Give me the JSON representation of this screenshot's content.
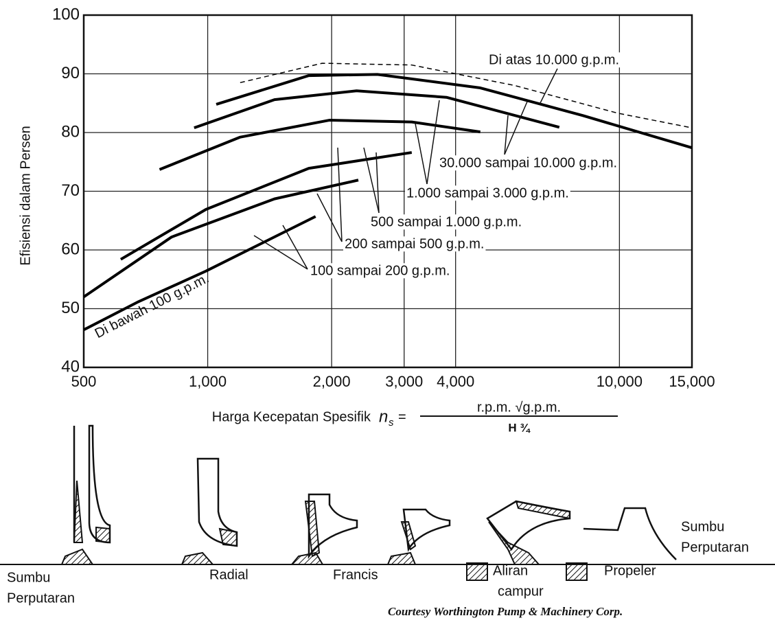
{
  "chart_data": {
    "type": "line",
    "y_label": "Efisiensi dalam Persen",
    "x_label": "Harga Kecepatan Spesifik",
    "formula": {
      "symbol": "n",
      "subscript": "s",
      "equals": "=",
      "numerator": "r.p.m. √g.p.m.",
      "denominator": "H ¾"
    },
    "xlog": true,
    "xlim": [
      500,
      15000
    ],
    "ylim": [
      40,
      100
    ],
    "xticks": [
      500,
      {
        "value": 1000,
        "label": "1,000"
      },
      {
        "value": 2000,
        "label": "2,000"
      },
      {
        "value": 3000,
        "label": "3,000"
      },
      {
        "value": 4000,
        "label": "4,000"
      },
      {
        "value": 10000,
        "label": "10,000"
      },
      {
        "value": 15000,
        "label": "15,000"
      }
    ],
    "yticks": [
      40,
      50,
      60,
      70,
      80,
      90,
      100
    ],
    "grid": true,
    "series": [
      {
        "name": "Di bawah 100 g.p.m.",
        "color": "#000000",
        "x": [
          500,
          675,
          990,
          1828
        ],
        "values": [
          46.4,
          51.1,
          56.4,
          65.7
        ]
      },
      {
        "name": "100 sampai 200 g.p.m.",
        "color": "#000000",
        "x": [
          500,
          817,
          1453,
          2322
        ],
        "values": [
          52,
          62.2,
          68.7,
          71.9
        ]
      },
      {
        "name": "200 sampai 500 g.p.m.",
        "color": "#000000",
        "x": [
          615,
          990,
          1760,
          3130
        ],
        "values": [
          58.4,
          66.9,
          73.9,
          76.6
        ]
      },
      {
        "name": "500 sampai 1.000 g.p.m.",
        "color": "#000000",
        "x": [
          764,
          1197,
          1974,
          3130,
          4593
        ],
        "values": [
          73.7,
          79.2,
          82.1,
          81.8,
          80.1
        ]
      },
      {
        "name": "1.000 sampai 3.000 g.p.m.",
        "color": "#000000",
        "x": [
          927,
          1453,
          2299,
          3800,
          7145
        ],
        "values": [
          80.8,
          85.6,
          87.1,
          86,
          80.9
        ]
      },
      {
        "name": "30.000 sampai 10.000 g.p.m.",
        "color": "#000000",
        "x": [
          1049,
          1760,
          2583,
          4593,
          8140,
          15000
        ],
        "values": [
          84.8,
          89.7,
          89.9,
          87.6,
          82.9,
          77.4
        ]
      },
      {
        "name": "Di atas 10.000 g.p.m.",
        "color": "#000000",
        "dashed": true,
        "x": [
          1199,
          1897,
          3130,
          5574,
          9900,
          15000
        ],
        "values": [
          88.5,
          91.8,
          91.5,
          88,
          83.3,
          80.8
        ]
      }
    ]
  },
  "impellers": {
    "axis_left": [
      "Sumbu",
      "Perputaran"
    ],
    "radial": "Radial",
    "francis": "Francis",
    "mixed": [
      "Aliran",
      "campur"
    ],
    "propeller": "Propeler",
    "axis_right": [
      "Sumbu",
      "Perputaran"
    ]
  },
  "credit": "Courtesy Worthington Pump & Machinery Corp."
}
